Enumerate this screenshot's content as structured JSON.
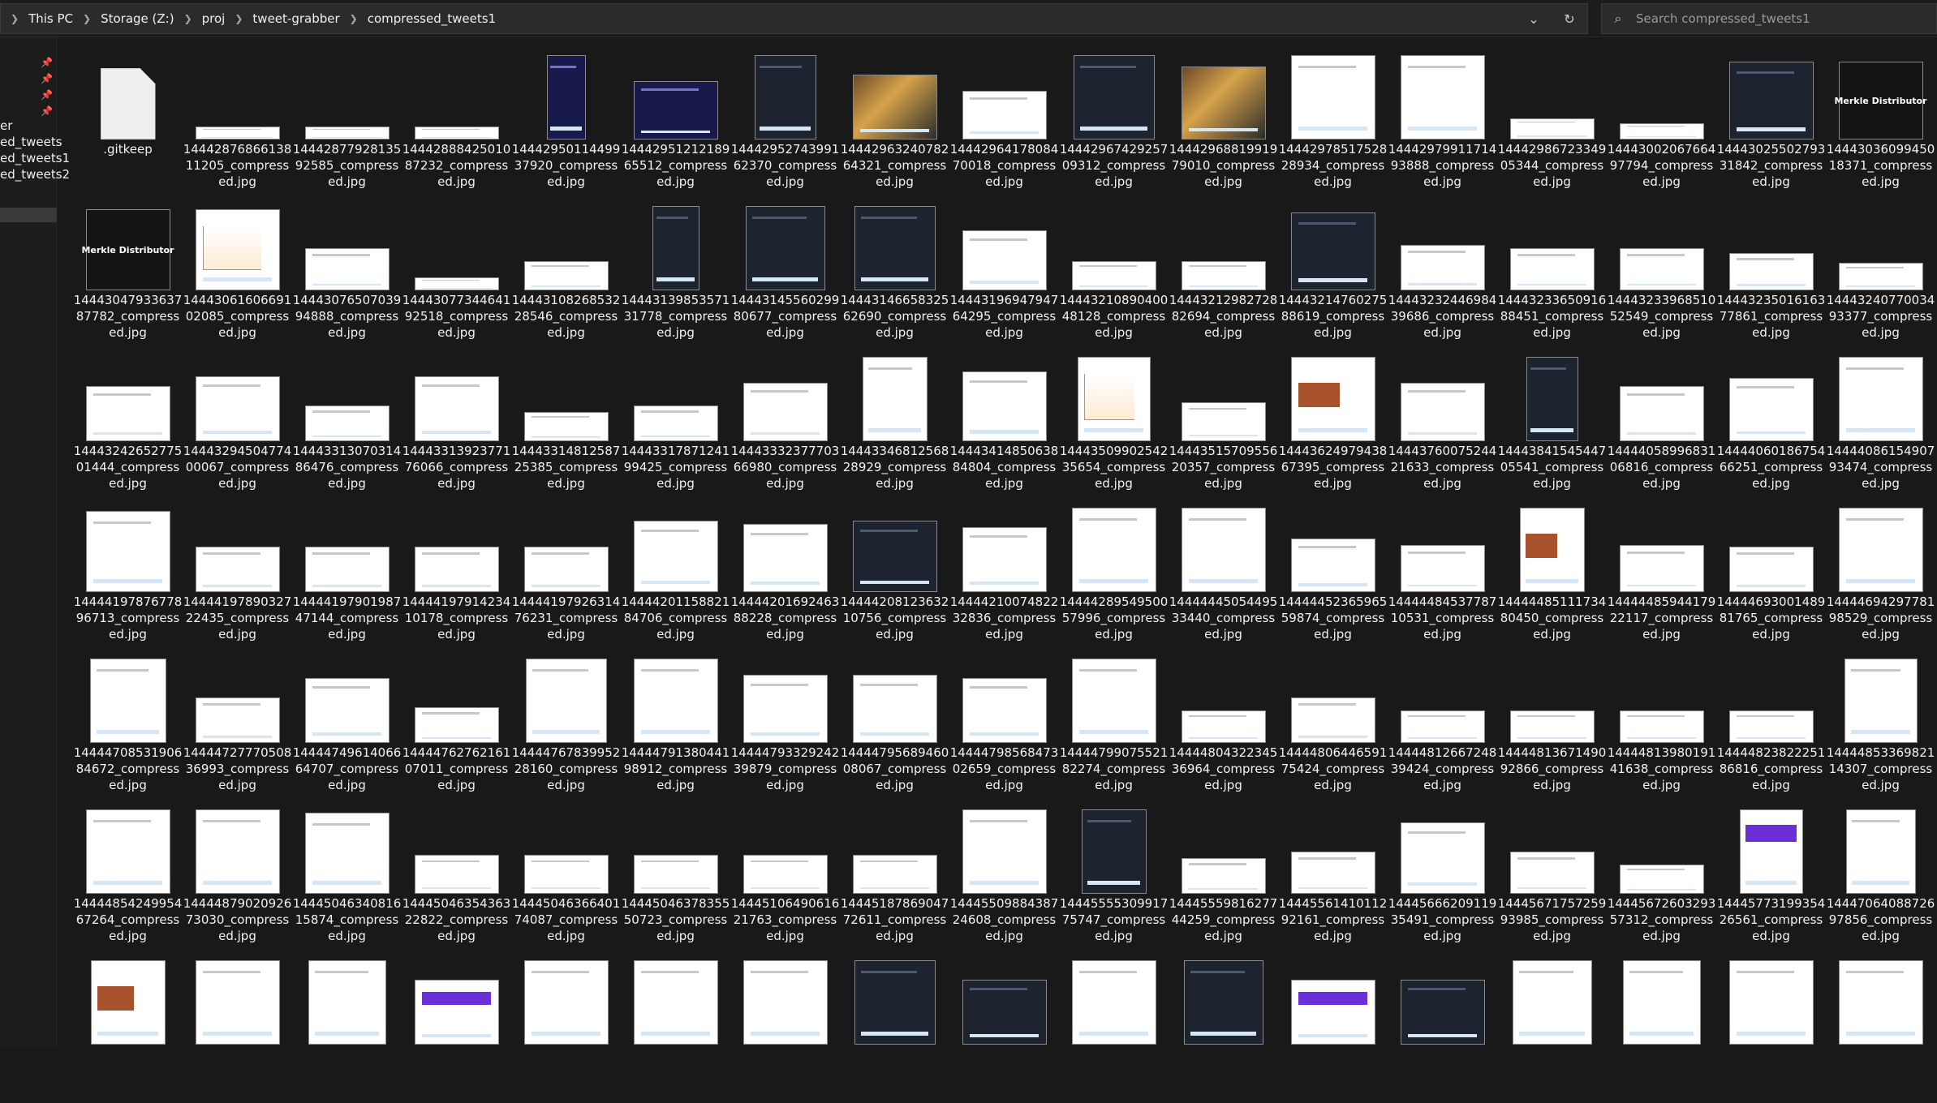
{
  "address_bar": {
    "crumbs": [
      "This PC",
      "Storage (Z:)",
      "proj",
      "tweet-grabber",
      "compressed_tweets1"
    ],
    "chevron_icon": "chevron-down-icon",
    "refresh_icon": "refresh-icon"
  },
  "search": {
    "placeholder": "Search compressed_tweets1",
    "icon": "search-icon"
  },
  "sidebar": {
    "pinned_count": 4,
    "items": [
      {
        "label": "er"
      },
      {
        "label": "ed_tweets"
      },
      {
        "label": "ed_tweets1"
      },
      {
        "label": "ed_tweets2"
      }
    ],
    "selected_index": 4
  },
  "files": [
    {
      "l1": ".gitkeep",
      "l2": "",
      "l3": "",
      "t": "file",
      "w": 68,
      "h": 88
    },
    {
      "l1": "14442876866138",
      "l2": "11205_compress",
      "l3": "ed.jpg",
      "t": "light",
      "w": 104,
      "h": 16
    },
    {
      "l1": "14442877928135",
      "l2": "92585_compress",
      "l3": "ed.jpg",
      "t": "light",
      "w": 104,
      "h": 16
    },
    {
      "l1": "14442888425010",
      "l2": "87232_compress",
      "l3": "ed.jpg",
      "t": "light",
      "w": 104,
      "h": 16
    },
    {
      "l1": "14442950114499",
      "l2": "37920_compress",
      "l3": "ed.jpg",
      "t": "navy",
      "w": 48,
      "h": 104
    },
    {
      "l1": "14442951212189",
      "l2": "65512_compress",
      "l3": "ed.jpg",
      "t": "navy",
      "w": 104,
      "h": 72
    },
    {
      "l1": "14442952743991",
      "l2": "62370_compress",
      "l3": "ed.jpg",
      "t": "dark",
      "w": 76,
      "h": 104
    },
    {
      "l1": "14442963240782",
      "l2": "64321_compress",
      "l3": "ed.jpg",
      "t": "art",
      "w": 104,
      "h": 80
    },
    {
      "l1": "14442964178084",
      "l2": "70018_compress",
      "l3": "ed.jpg",
      "t": "light",
      "w": 104,
      "h": 60
    },
    {
      "l1": "14442967429257",
      "l2": "09312_compress",
      "l3": "ed.jpg",
      "t": "dark",
      "w": 100,
      "h": 104
    },
    {
      "l1": "14442968819919",
      "l2": "79010_compress",
      "l3": "ed.jpg",
      "t": "art",
      "w": 104,
      "h": 90
    },
    {
      "l1": "14442978517528",
      "l2": "28934_compress",
      "l3": "ed.jpg",
      "t": "light",
      "w": 104,
      "h": 104
    },
    {
      "l1": "14442979911714",
      "l2": "93888_compress",
      "l3": "ed.jpg",
      "t": "light",
      "w": 104,
      "h": 104
    },
    {
      "l1": "14442986723349",
      "l2": "05344_compress",
      "l3": "ed.jpg",
      "t": "light",
      "w": 104,
      "h": 26
    },
    {
      "l1": "14443002067664",
      "l2": "97794_compress",
      "l3": "ed.jpg",
      "t": "light",
      "w": 104,
      "h": 20
    },
    {
      "l1": "14443025502793",
      "l2": "31842_compress",
      "l3": "ed.jpg",
      "t": "dark",
      "w": 104,
      "h": 96
    },
    {
      "l1": "14443036099450",
      "l2": "18371_compress",
      "l3": "ed.jpg",
      "t": "merkle",
      "w": 104,
      "h": 96,
      "caption": "Merkle Distributor"
    },
    {
      "l1": "14443047933637",
      "l2": "87782_compress",
      "l3": "ed.jpg",
      "t": "merkle",
      "w": 104,
      "h": 100,
      "caption": "Merkle Distributor"
    },
    {
      "l1": "14443061606691",
      "l2": "02085_compress",
      "l3": "ed.jpg",
      "t": "chart",
      "w": 104,
      "h": 100
    },
    {
      "l1": "14443076507039",
      "l2": "94888_compress",
      "l3": "ed.jpg",
      "t": "light",
      "w": 104,
      "h": 52
    },
    {
      "l1": "14443077344641",
      "l2": "92518_compress",
      "l3": "ed.jpg",
      "t": "light",
      "w": 104,
      "h": 16
    },
    {
      "l1": "14443108268532",
      "l2": "28546_compress",
      "l3": "ed.jpg",
      "t": "light",
      "w": 104,
      "h": 36
    },
    {
      "l1": "14443139853571",
      "l2": "31778_compress",
      "l3": "ed.jpg",
      "t": "dark",
      "w": 58,
      "h": 104
    },
    {
      "l1": "14443145560299",
      "l2": "80677_compress",
      "l3": "ed.jpg",
      "t": "dark",
      "w": 98,
      "h": 104
    },
    {
      "l1": "14443146658325",
      "l2": "62690_compress",
      "l3": "ed.jpg",
      "t": "dark",
      "w": 100,
      "h": 104
    },
    {
      "l1": "14443196947947",
      "l2": "64295_compress",
      "l3": "ed.jpg",
      "t": "light",
      "w": 104,
      "h": 74
    },
    {
      "l1": "14443210890400",
      "l2": "48128_compress",
      "l3": "ed.jpg",
      "t": "light",
      "w": 104,
      "h": 36
    },
    {
      "l1": "14443212982728",
      "l2": "82694_compress",
      "l3": "ed.jpg",
      "t": "light",
      "w": 104,
      "h": 36
    },
    {
      "l1": "14443214760275",
      "l2": "88619_compress",
      "l3": "ed.jpg",
      "t": "dark",
      "w": 104,
      "h": 96
    },
    {
      "l1": "14443232446984",
      "l2": "39686_compress",
      "l3": "ed.jpg",
      "t": "light",
      "w": 104,
      "h": 56
    },
    {
      "l1": "14443233650916",
      "l2": "88451_compress",
      "l3": "ed.jpg",
      "t": "light",
      "w": 104,
      "h": 52
    },
    {
      "l1": "14443233968510",
      "l2": "52549_compress",
      "l3": "ed.jpg",
      "t": "light",
      "w": 104,
      "h": 52
    },
    {
      "l1": "14443235016163",
      "l2": "77861_compress",
      "l3": "ed.jpg",
      "t": "light",
      "w": 104,
      "h": 46
    },
    {
      "l1": "14443240770034",
      "l2": "93377_compress",
      "l3": "ed.jpg",
      "t": "light",
      "w": 104,
      "h": 34
    },
    {
      "l1": "14443242652775",
      "l2": "01444_compress",
      "l3": "ed.jpg",
      "t": "light",
      "w": 104,
      "h": 68
    },
    {
      "l1": "14443294504774",
      "l2": "00067_compress",
      "l3": "ed.jpg",
      "t": "light",
      "w": 104,
      "h": 80
    },
    {
      "l1": "14443313070314",
      "l2": "86476_compress",
      "l3": "ed.jpg",
      "t": "light",
      "w": 104,
      "h": 44
    },
    {
      "l1": "14443313923771",
      "l2": "76066_compress",
      "l3": "ed.jpg",
      "t": "light",
      "w": 104,
      "h": 80
    },
    {
      "l1": "14443314812587",
      "l2": "25385_compress",
      "l3": "ed.jpg",
      "t": "light",
      "w": 104,
      "h": 36
    },
    {
      "l1": "14443317871241",
      "l2": "99425_compress",
      "l3": "ed.jpg",
      "t": "light",
      "w": 104,
      "h": 44
    },
    {
      "l1": "14443332377703",
      "l2": "66980_compress",
      "l3": "ed.jpg",
      "t": "light",
      "w": 104,
      "h": 72
    },
    {
      "l1": "14443346812568",
      "l2": "28929_compress",
      "l3": "ed.jpg",
      "t": "light",
      "w": 80,
      "h": 104
    },
    {
      "l1": "14443414850638",
      "l2": "84804_compress",
      "l3": "ed.jpg",
      "t": "light",
      "w": 104,
      "h": 86
    },
    {
      "l1": "14443509902542",
      "l2": "35654_compress",
      "l3": "ed.jpg",
      "t": "chart",
      "w": 90,
      "h": 104
    },
    {
      "l1": "14443515709556",
      "l2": "20357_compress",
      "l3": "ed.jpg",
      "t": "light",
      "w": 104,
      "h": 48
    },
    {
      "l1": "14443624979438",
      "l2": "67395_compress",
      "l3": "ed.jpg",
      "t": "orange",
      "w": 104,
      "h": 104
    },
    {
      "l1": "14443760075244",
      "l2": "21633_compress",
      "l3": "ed.jpg",
      "t": "light",
      "w": 104,
      "h": 72
    },
    {
      "l1": "14443841545447",
      "l2": "05541_compress",
      "l3": "ed.jpg",
      "t": "dark",
      "w": 64,
      "h": 104
    },
    {
      "l1": "14444058996831",
      "l2": "06816_compress",
      "l3": "ed.jpg",
      "t": "light",
      "w": 104,
      "h": 68
    },
    {
      "l1": "14444060186754",
      "l2": "66251_compress",
      "l3": "ed.jpg",
      "t": "light",
      "w": 104,
      "h": 78
    },
    {
      "l1": "14444086154907",
      "l2": "93474_compress",
      "l3": "ed.jpg",
      "t": "light",
      "w": 104,
      "h": 104
    },
    {
      "l1": "14444197876778",
      "l2": "96713_compress",
      "l3": "ed.jpg",
      "t": "light",
      "w": 104,
      "h": 100
    },
    {
      "l1": "14444197890327",
      "l2": "22435_compress",
      "l3": "ed.jpg",
      "t": "light",
      "w": 104,
      "h": 56
    },
    {
      "l1": "14444197901987",
      "l2": "47144_compress",
      "l3": "ed.jpg",
      "t": "light",
      "w": 104,
      "h": 56
    },
    {
      "l1": "14444197914234",
      "l2": "10178_compress",
      "l3": "ed.jpg",
      "t": "light",
      "w": 104,
      "h": 56
    },
    {
      "l1": "14444197926314",
      "l2": "76231_compress",
      "l3": "ed.jpg",
      "t": "light",
      "w": 104,
      "h": 56
    },
    {
      "l1": "14444201158821",
      "l2": "84706_compress",
      "l3": "ed.jpg",
      "t": "light",
      "w": 104,
      "h": 88
    },
    {
      "l1": "14444201692463",
      "l2": "88228_compress",
      "l3": "ed.jpg",
      "t": "light",
      "w": 104,
      "h": 84
    },
    {
      "l1": "14444208123632",
      "l2": "10756_compress",
      "l3": "ed.jpg",
      "t": "dark",
      "w": 104,
      "h": 88
    },
    {
      "l1": "14444210074822",
      "l2": "32836_compress",
      "l3": "ed.jpg",
      "t": "light",
      "w": 104,
      "h": 80
    },
    {
      "l1": "14444289549500",
      "l2": "57996_compress",
      "l3": "ed.jpg",
      "t": "light",
      "w": 104,
      "h": 104
    },
    {
      "l1": "14444445054495",
      "l2": "33440_compress",
      "l3": "ed.jpg",
      "t": "light",
      "w": 104,
      "h": 104
    },
    {
      "l1": "14444452365965",
      "l2": "59874_compress",
      "l3": "ed.jpg",
      "t": "light",
      "w": 104,
      "h": 66
    },
    {
      "l1": "14444484537787",
      "l2": "10531_compress",
      "l3": "ed.jpg",
      "t": "light",
      "w": 104,
      "h": 58
    },
    {
      "l1": "14444485111734",
      "l2": "80450_compress",
      "l3": "ed.jpg",
      "t": "orange",
      "w": 80,
      "h": 104
    },
    {
      "l1": "14444485944179",
      "l2": "22117_compress",
      "l3": "ed.jpg",
      "t": "light",
      "w": 104,
      "h": 58
    },
    {
      "l1": "14444693001489",
      "l2": "81765_compress",
      "l3": "ed.jpg",
      "t": "light",
      "w": 104,
      "h": 56
    },
    {
      "l1": "14444694297781",
      "l2": "98529_compress",
      "l3": "ed.jpg",
      "t": "light",
      "w": 104,
      "h": 104
    },
    {
      "l1": "14444708531906",
      "l2": "84672_compress",
      "l3": "ed.jpg",
      "t": "light",
      "w": 94,
      "h": 104
    },
    {
      "l1": "14444727770508",
      "l2": "36993_compress",
      "l3": "ed.jpg",
      "t": "light",
      "w": 104,
      "h": 56
    },
    {
      "l1": "14444749614066",
      "l2": "64707_compress",
      "l3": "ed.jpg",
      "t": "light",
      "w": 104,
      "h": 80
    },
    {
      "l1": "14444762762161",
      "l2": "07011_compress",
      "l3": "ed.jpg",
      "t": "light",
      "w": 104,
      "h": 44
    },
    {
      "l1": "14444767839952",
      "l2": "28160_compress",
      "l3": "ed.jpg",
      "t": "light",
      "w": 100,
      "h": 104
    },
    {
      "l1": "14444791380441",
      "l2": "98912_compress",
      "l3": "ed.jpg",
      "t": "light",
      "w": 104,
      "h": 104
    },
    {
      "l1": "14444793329242",
      "l2": "39879_compress",
      "l3": "ed.jpg",
      "t": "light",
      "w": 104,
      "h": 84
    },
    {
      "l1": "14444795689460",
      "l2": "08067_compress",
      "l3": "ed.jpg",
      "t": "light",
      "w": 104,
      "h": 84
    },
    {
      "l1": "14444798568473",
      "l2": "02659_compress",
      "l3": "ed.jpg",
      "t": "light",
      "w": 104,
      "h": 80
    },
    {
      "l1": "14444799075521",
      "l2": "82274_compress",
      "l3": "ed.jpg",
      "t": "light",
      "w": 104,
      "h": 104
    },
    {
      "l1": "14444804322345",
      "l2": "36964_compress",
      "l3": "ed.jpg",
      "t": "light",
      "w": 104,
      "h": 40
    },
    {
      "l1": "14444806446591",
      "l2": "75424_compress",
      "l3": "ed.jpg",
      "t": "light",
      "w": 104,
      "h": 56
    },
    {
      "l1": "14444812667248",
      "l2": "39424_compress",
      "l3": "ed.jpg",
      "t": "light",
      "w": 104,
      "h": 40
    },
    {
      "l1": "14444813671490",
      "l2": "92866_compress",
      "l3": "ed.jpg",
      "t": "light",
      "w": 104,
      "h": 40
    },
    {
      "l1": "14444813980191",
      "l2": "41638_compress",
      "l3": "ed.jpg",
      "t": "light",
      "w": 104,
      "h": 40
    },
    {
      "l1": "14444823822251",
      "l2": "86816_compress",
      "l3": "ed.jpg",
      "t": "light",
      "w": 104,
      "h": 40
    },
    {
      "l1": "14444853369821",
      "l2": "14307_compress",
      "l3": "ed.jpg",
      "t": "light",
      "w": 90,
      "h": 104
    },
    {
      "l1": "14444854249954",
      "l2": "67264_compress",
      "l3": "ed.jpg",
      "t": "light",
      "w": 104,
      "h": 104
    },
    {
      "l1": "14444879020926",
      "l2": "73030_compress",
      "l3": "ed.jpg",
      "t": "light",
      "w": 104,
      "h": 104
    },
    {
      "l1": "14445046340816",
      "l2": "15874_compress",
      "l3": "ed.jpg",
      "t": "light",
      "w": 104,
      "h": 100
    },
    {
      "l1": "14445046354363",
      "l2": "22822_compress",
      "l3": "ed.jpg",
      "t": "light",
      "w": 104,
      "h": 48
    },
    {
      "l1": "14445046366401",
      "l2": "74087_compress",
      "l3": "ed.jpg",
      "t": "light",
      "w": 104,
      "h": 48
    },
    {
      "l1": "14445046378355",
      "l2": "50723_compress",
      "l3": "ed.jpg",
      "t": "light",
      "w": 104,
      "h": 48
    },
    {
      "l1": "14445106490616",
      "l2": "21763_compress",
      "l3": "ed.jpg",
      "t": "light",
      "w": 104,
      "h": 48
    },
    {
      "l1": "14445187869047",
      "l2": "72611_compress",
      "l3": "ed.jpg",
      "t": "light",
      "w": 104,
      "h": 48
    },
    {
      "l1": "14445509884387",
      "l2": "24608_compress",
      "l3": "ed.jpg",
      "t": "light",
      "w": 104,
      "h": 104
    },
    {
      "l1": "14445555309917",
      "l2": "75747_compress",
      "l3": "ed.jpg",
      "t": "dark",
      "w": 80,
      "h": 104
    },
    {
      "l1": "14445559816277",
      "l2": "44259_compress",
      "l3": "ed.jpg",
      "t": "light",
      "w": 104,
      "h": 44
    },
    {
      "l1": "14445561410112",
      "l2": "92161_compress",
      "l3": "ed.jpg",
      "t": "light",
      "w": 104,
      "h": 52
    },
    {
      "l1": "14445666209119",
      "l2": "35491_compress",
      "l3": "ed.jpg",
      "t": "light",
      "w": 104,
      "h": 88
    },
    {
      "l1": "14445671757259",
      "l2": "93985_compress",
      "l3": "ed.jpg",
      "t": "light",
      "w": 104,
      "h": 52
    },
    {
      "l1": "14445672603293",
      "l2": "57312_compress",
      "l3": "ed.jpg",
      "t": "light",
      "w": 104,
      "h": 36
    },
    {
      "l1": "14445773199354",
      "l2": "26561_compress",
      "l3": "ed.jpg",
      "t": "purple",
      "w": 78,
      "h": 104
    },
    {
      "l1": "14447064088726",
      "l2": "97856_compress",
      "l3": "ed.jpg",
      "t": "light",
      "w": 86,
      "h": 104
    },
    {
      "l1": "",
      "l2": "",
      "l3": "",
      "t": "orange",
      "w": 92,
      "h": 104
    },
    {
      "l1": "",
      "l2": "",
      "l3": "",
      "t": "light",
      "w": 104,
      "h": 104
    },
    {
      "l1": "",
      "l2": "",
      "l3": "",
      "t": "light",
      "w": 96,
      "h": 104
    },
    {
      "l1": "",
      "l2": "",
      "l3": "",
      "t": "purple",
      "w": 104,
      "h": 80
    },
    {
      "l1": "",
      "l2": "",
      "l3": "",
      "t": "light",
      "w": 104,
      "h": 104
    },
    {
      "l1": "",
      "l2": "",
      "l3": "",
      "t": "light",
      "w": 104,
      "h": 104
    },
    {
      "l1": "",
      "l2": "",
      "l3": "",
      "t": "light",
      "w": 104,
      "h": 104
    },
    {
      "l1": "",
      "l2": "",
      "l3": "",
      "t": "dark",
      "w": 100,
      "h": 104
    },
    {
      "l1": "",
      "l2": "",
      "l3": "",
      "t": "dark",
      "w": 104,
      "h": 80
    },
    {
      "l1": "",
      "l2": "",
      "l3": "",
      "t": "light",
      "w": 104,
      "h": 104
    },
    {
      "l1": "",
      "l2": "",
      "l3": "",
      "t": "dark",
      "w": 98,
      "h": 104
    },
    {
      "l1": "",
      "l2": "",
      "l3": "",
      "t": "purple",
      "w": 104,
      "h": 80
    },
    {
      "l1": "",
      "l2": "",
      "l3": "",
      "t": "dark",
      "w": 104,
      "h": 80
    },
    {
      "l1": "",
      "l2": "",
      "l3": "",
      "t": "light",
      "w": 98,
      "h": 104
    },
    {
      "l1": "",
      "l2": "",
      "l3": "",
      "t": "light",
      "w": 96,
      "h": 104
    },
    {
      "l1": "",
      "l2": "",
      "l3": "",
      "t": "light",
      "w": 104,
      "h": 104
    },
    {
      "l1": "",
      "l2": "",
      "l3": "",
      "t": "light",
      "w": 104,
      "h": 104
    }
  ]
}
